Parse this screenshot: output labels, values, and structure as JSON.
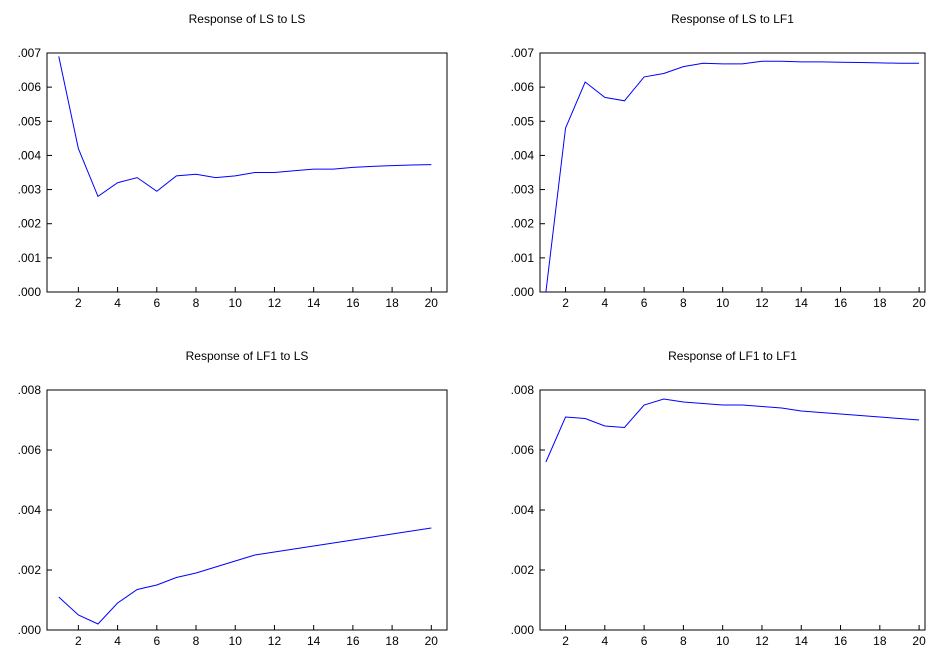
{
  "chart_data": [
    {
      "type": "line",
      "title": "Response of LS to LS",
      "x": [
        1,
        2,
        3,
        4,
        5,
        6,
        7,
        8,
        9,
        10,
        11,
        12,
        13,
        14,
        15,
        16,
        17,
        18,
        19,
        20
      ],
      "series": [
        {
          "color": "#0000ff",
          "values": [
            0.0069,
            0.0042,
            0.0028,
            0.0032,
            0.00335,
            0.00295,
            0.0034,
            0.00345,
            0.00335,
            0.0034,
            0.0035,
            0.0035,
            0.00355,
            0.0036,
            0.0036,
            0.00365,
            0.00368,
            0.0037,
            0.00372,
            0.00373
          ]
        }
      ],
      "xlim": [
        0.4,
        20.8
      ],
      "xticks": [
        2,
        4,
        6,
        8,
        10,
        12,
        14,
        16,
        18,
        20
      ],
      "ylim": [
        0,
        0.007
      ],
      "yticks": [
        {
          "value": 0,
          "label": ".000"
        },
        {
          "value": 0.001,
          "label": ".001"
        },
        {
          "value": 0.002,
          "label": ".002"
        },
        {
          "value": 0.003,
          "label": ".003"
        },
        {
          "value": 0.004,
          "label": ".004"
        },
        {
          "value": 0.005,
          "label": ".005"
        },
        {
          "value": 0.006,
          "label": ".006"
        },
        {
          "value": 0.007,
          "label": ".007"
        }
      ]
    },
    {
      "type": "line",
      "title": "Response of LS to LF1",
      "x": [
        1,
        2,
        3,
        4,
        5,
        6,
        7,
        8,
        9,
        10,
        11,
        12,
        13,
        14,
        15,
        16,
        17,
        18,
        19,
        20
      ],
      "series": [
        {
          "color": "#0000ff",
          "values": [
            0,
            0.0048,
            0.00615,
            0.0057,
            0.0056,
            0.0063,
            0.0064,
            0.0066,
            0.0067,
            0.00668,
            0.00668,
            0.00676,
            0.00676,
            0.00674,
            0.00674,
            0.00673,
            0.00672,
            0.00671,
            0.0067,
            0.0067
          ]
        }
      ],
      "xlim": [
        0.7,
        20.3
      ],
      "xticks": [
        2,
        4,
        6,
        8,
        10,
        12,
        14,
        16,
        18,
        20
      ],
      "ylim": [
        0,
        0.007
      ],
      "yticks": [
        {
          "value": 0,
          "label": ".000"
        },
        {
          "value": 0.001,
          "label": ".001"
        },
        {
          "value": 0.002,
          "label": ".002"
        },
        {
          "value": 0.003,
          "label": ".003"
        },
        {
          "value": 0.004,
          "label": ".004"
        },
        {
          "value": 0.005,
          "label": ".005"
        },
        {
          "value": 0.006,
          "label": ".006"
        },
        {
          "value": 0.007,
          "label": ".007"
        }
      ]
    },
    {
      "type": "line",
      "title": "Response of LF1 to LS",
      "x": [
        1,
        2,
        3,
        4,
        5,
        6,
        7,
        8,
        9,
        10,
        11,
        12,
        13,
        14,
        15,
        16,
        17,
        18,
        19,
        20
      ],
      "series": [
        {
          "color": "#0000ff",
          "values": [
            0.0011,
            0.0005,
            0.0002,
            0.0009,
            0.00135,
            0.0015,
            0.00175,
            0.0019,
            0.0021,
            0.0023,
            0.0025,
            0.0026,
            0.0027,
            0.0028,
            0.0029,
            0.003,
            0.0031,
            0.0032,
            0.0033,
            0.0034
          ]
        }
      ],
      "xlim": [
        0.4,
        20.8
      ],
      "xticks": [
        2,
        4,
        6,
        8,
        10,
        12,
        14,
        16,
        18,
        20
      ],
      "ylim": [
        0,
        0.008
      ],
      "yticks": [
        {
          "value": 0,
          "label": ".000"
        },
        {
          "value": 0.002,
          "label": ".002"
        },
        {
          "value": 0.004,
          "label": ".004"
        },
        {
          "value": 0.006,
          "label": ".006"
        },
        {
          "value": 0.008,
          "label": ".008"
        }
      ]
    },
    {
      "type": "line",
      "title": "Response of LF1 to LF1",
      "x": [
        1,
        2,
        3,
        4,
        5,
        6,
        7,
        8,
        9,
        10,
        11,
        12,
        13,
        14,
        15,
        16,
        17,
        18,
        19,
        20
      ],
      "series": [
        {
          "color": "#0000ff",
          "values": [
            0.0056,
            0.0071,
            0.00705,
            0.0068,
            0.00675,
            0.0075,
            0.0077,
            0.0076,
            0.00755,
            0.0075,
            0.0075,
            0.00745,
            0.0074,
            0.0073,
            0.00725,
            0.0072,
            0.00715,
            0.0071,
            0.00705,
            0.007
          ]
        }
      ],
      "xlim": [
        0.7,
        20.3
      ],
      "xticks": [
        2,
        4,
        6,
        8,
        10,
        12,
        14,
        16,
        18,
        20
      ],
      "ylim": [
        0,
        0.008
      ],
      "yticks": [
        {
          "value": 0,
          "label": ".000"
        },
        {
          "value": 0.002,
          "label": ".002"
        },
        {
          "value": 0.004,
          "label": ".004"
        },
        {
          "value": 0.006,
          "label": ".006"
        },
        {
          "value": 0.008,
          "label": ".008"
        }
      ]
    }
  ]
}
